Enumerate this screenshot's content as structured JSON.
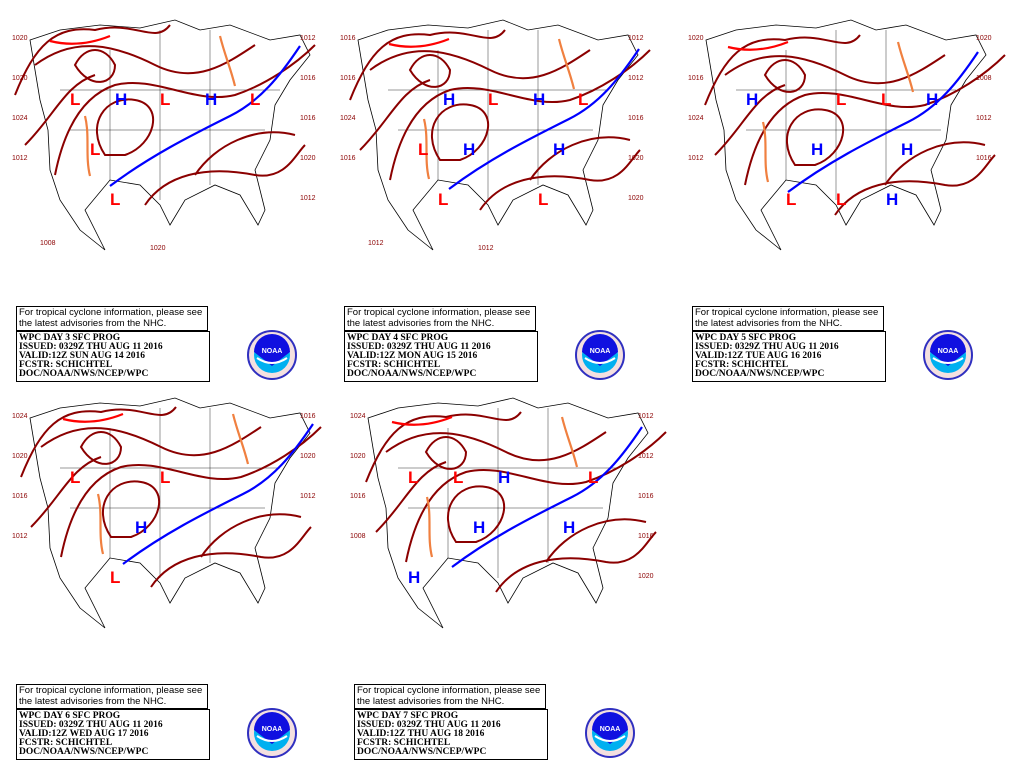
{
  "nhc_note": {
    "line1": "For tropical cyclone information, please see",
    "line2": "the latest advisories from the NHC."
  },
  "colors": {
    "isobar": "#8b0000",
    "high": "#0000ff",
    "low": "#ff0000",
    "trough": "#f08040",
    "cold_front": "#0000ff",
    "warm_front": "#ff0000"
  },
  "logo": {
    "text": "NOAA",
    "icon": "noaa-logo"
  },
  "panels": [
    {
      "title": "WPC DAY 3 SFC PROG",
      "issued": "ISSUED: 0329Z THU AUG 11 2016",
      "valid": "VALID:12Z SUN AUG 14 2016",
      "fcstr": "FCSTR: SCHICHTEL",
      "org": "DOC/NOAA/NWS/NCEP/WPC",
      "centers": [
        "H",
        "H",
        "L",
        "L",
        "L",
        "L",
        "L"
      ],
      "isobar_labels": [
        "1020",
        "1020",
        "1024",
        "1012",
        "1012",
        "1016",
        "1016",
        "1020",
        "1012",
        "1008",
        "1020"
      ]
    },
    {
      "title": "WPC DAY 4 SFC PROG",
      "issued": "ISSUED: 0329Z THU AUG 11 2016",
      "valid": "VALID:12Z MON AUG 15 2016",
      "fcstr": "FCSTR: SCHICHTEL",
      "org": "DOC/NOAA/NWS/NCEP/WPC",
      "centers": [
        "H",
        "H",
        "H",
        "H",
        "L",
        "L",
        "L",
        "L",
        "L"
      ],
      "isobar_labels": [
        "1016",
        "1016",
        "1024",
        "1016",
        "1012",
        "1012",
        "1016",
        "1020",
        "1020",
        "1012",
        "1012"
      ]
    },
    {
      "title": "WPC DAY 5 SFC PROG",
      "issued": "ISSUED: 0329Z THU AUG 11 2016",
      "valid": "VALID:12Z TUE AUG 16 2016",
      "fcstr": "FCSTR: SCHICHTEL",
      "org": "DOC/NOAA/NWS/NCEP/WPC",
      "centers": [
        "H",
        "H",
        "H",
        "H",
        "H",
        "L",
        "L",
        "L",
        "L"
      ],
      "isobar_labels": [
        "1020",
        "1016",
        "1024",
        "1012",
        "1020",
        "1008",
        "1012",
        "1016"
      ]
    },
    {
      "title": "WPC DAY 6 SFC PROG",
      "issued": "ISSUED: 0329Z THU AUG 11 2016",
      "valid": "VALID:12Z WED AUG 17 2016",
      "fcstr": "FCSTR: SCHICHTEL",
      "org": "DOC/NOAA/NWS/NCEP/WPC",
      "centers": [
        "H",
        "L",
        "L",
        "L"
      ],
      "isobar_labels": [
        "1024",
        "1020",
        "1016",
        "1012",
        "1016",
        "1020",
        "1012"
      ]
    },
    {
      "title": "WPC DAY 7 SFC PROG",
      "issued": "ISSUED: 0329Z THU AUG 11 2016",
      "valid": "VALID:12Z THU AUG 18 2016",
      "fcstr": "FCSTR: SCHICHTEL",
      "org": "DOC/NOAA/NWS/NCEP/WPC",
      "centers": [
        "H",
        "H",
        "H",
        "H",
        "L",
        "L",
        "L"
      ],
      "isobar_labels": [
        "1024",
        "1020",
        "1016",
        "1008",
        "1012",
        "1012",
        "1016",
        "1016",
        "1020"
      ]
    }
  ]
}
